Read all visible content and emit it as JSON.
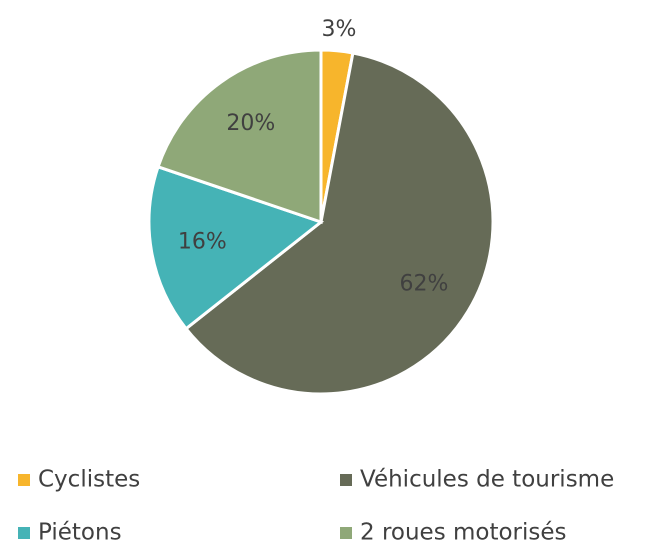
{
  "chart_data": {
    "type": "pie",
    "categories": [
      "Cyclistes",
      "Véhicules de tourisme",
      "Piétons",
      "2 roues motorisés"
    ],
    "values": [
      3,
      62,
      16,
      20
    ],
    "value_labels": [
      "3%",
      "62%",
      "16%",
      "20%"
    ],
    "colors": [
      "#f7b52c",
      "#666b57",
      "#45b3b6",
      "#8fa878"
    ],
    "legend": "bottom"
  }
}
